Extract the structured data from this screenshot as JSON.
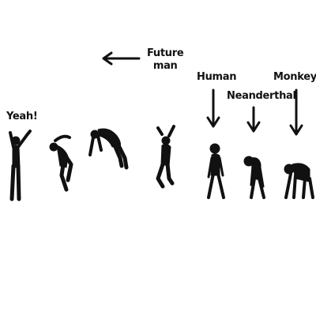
{
  "labels": {
    "yeah": "Yeah!",
    "future_line1": "Future",
    "future_line2": "man",
    "human": "Human",
    "neanderthal": "Neanderthal",
    "monkey": "Monkey"
  },
  "colors": {
    "ink": "#111111",
    "background": "#ffffff"
  }
}
